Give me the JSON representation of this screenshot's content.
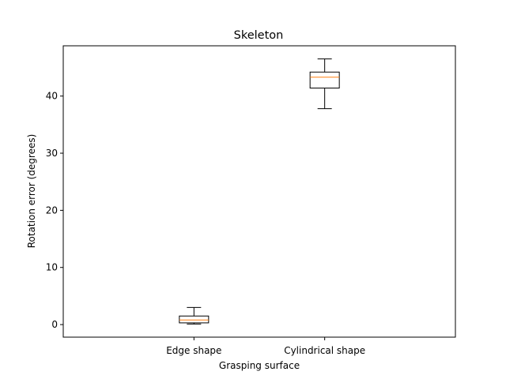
{
  "chart_data": {
    "type": "box",
    "title": "Skeleton",
    "xlabel": "Grasping surface",
    "ylabel": "Rotation error (degrees)",
    "ylim": [
      -2.2,
      48.8
    ],
    "yticks": [
      0,
      10,
      20,
      30,
      40
    ],
    "categories": [
      "Edge shape",
      "Cylindrical shape"
    ],
    "boxes": [
      {
        "category": "Edge shape",
        "whisker_low": 0.1,
        "q1": 0.3,
        "median": 0.8,
        "q3": 1.5,
        "whisker_high": 3.0
      },
      {
        "category": "Cylindrical shape",
        "whisker_low": 37.8,
        "q1": 41.4,
        "median": 43.3,
        "q3": 44.2,
        "whisker_high": 46.5
      }
    ],
    "grid": false,
    "legend": "none",
    "colors": {
      "box": "#000000",
      "median": "#ff7f0e",
      "axes": "#000000",
      "background": "#ffffff"
    }
  }
}
